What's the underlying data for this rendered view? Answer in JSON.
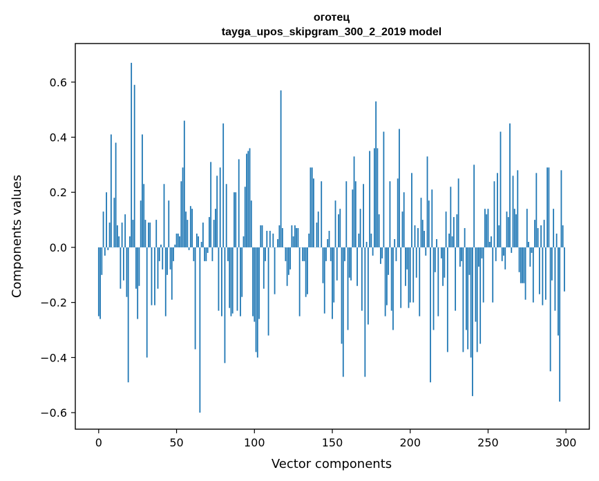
{
  "chart_data": {
    "type": "bar",
    "title": "оготец",
    "subtitle": "tayga_upos_skipgram_300_2_2019 model",
    "xlabel": "Vector components",
    "ylabel": "Components values",
    "xlim": [
      -15,
      315
    ],
    "ylim": [
      -0.66,
      0.74
    ],
    "xticks": [
      0,
      50,
      100,
      150,
      200,
      250,
      300
    ],
    "xtick_labels": [
      "0",
      "50",
      "100",
      "150",
      "200",
      "250",
      "300"
    ],
    "yticks": [
      -0.6,
      -0.4,
      -0.2,
      0.0,
      0.2,
      0.4,
      0.6
    ],
    "ytick_labels": [
      "−0.6",
      "−0.4",
      "−0.2",
      "0.0",
      "0.2",
      "0.4",
      "0.6"
    ],
    "grid": false,
    "bar_color": "#1f77b4",
    "x": [
      0,
      1,
      2,
      3,
      4,
      5,
      6,
      7,
      8,
      9,
      10,
      11,
      12,
      13,
      14,
      15,
      16,
      17,
      18,
      19,
      20,
      21,
      22,
      23,
      24,
      25,
      26,
      27,
      28,
      29,
      30,
      31,
      32,
      33,
      34,
      35,
      36,
      37,
      38,
      39,
      40,
      41,
      42,
      43,
      44,
      45,
      46,
      47,
      48,
      49,
      50,
      51,
      52,
      53,
      54,
      55,
      56,
      57,
      58,
      59,
      60,
      61,
      62,
      63,
      64,
      65,
      66,
      67,
      68,
      69,
      70,
      71,
      72,
      73,
      74,
      75,
      76,
      77,
      78,
      79,
      80,
      81,
      82,
      83,
      84,
      85,
      86,
      87,
      88,
      89,
      90,
      91,
      92,
      93,
      94,
      95,
      96,
      97,
      98,
      99,
      100,
      101,
      102,
      103,
      104,
      105,
      106,
      107,
      108,
      109,
      110,
      111,
      112,
      113,
      114,
      115,
      116,
      117,
      118,
      119,
      120,
      121,
      122,
      123,
      124,
      125,
      126,
      127,
      128,
      129,
      130,
      131,
      132,
      133,
      134,
      135,
      136,
      137,
      138,
      139,
      140,
      141,
      142,
      143,
      144,
      145,
      146,
      147,
      148,
      149,
      150,
      151,
      152,
      153,
      154,
      155,
      156,
      157,
      158,
      159,
      160,
      161,
      162,
      163,
      164,
      165,
      166,
      167,
      168,
      169,
      170,
      171,
      172,
      173,
      174,
      175,
      176,
      177,
      178,
      179,
      180,
      181,
      182,
      183,
      184,
      185,
      186,
      187,
      188,
      189,
      190,
      191,
      192,
      193,
      194,
      195,
      196,
      197,
      198,
      199,
      200,
      201,
      202,
      203,
      204,
      205,
      206,
      207,
      208,
      209,
      210,
      211,
      212,
      213,
      214,
      215,
      216,
      217,
      218,
      219,
      220,
      221,
      222,
      223,
      224,
      225,
      226,
      227,
      228,
      229,
      230,
      231,
      232,
      233,
      234,
      235,
      236,
      237,
      238,
      239,
      240,
      241,
      242,
      243,
      244,
      245,
      246,
      247,
      248,
      249,
      250,
      251,
      252,
      253,
      254,
      255,
      256,
      257,
      258,
      259,
      260,
      261,
      262,
      263,
      264,
      265,
      266,
      267,
      268,
      269,
      270,
      271,
      272,
      273,
      274,
      275,
      276,
      277,
      278,
      279,
      280,
      281,
      282,
      283,
      284,
      285,
      286,
      287,
      288,
      289,
      290,
      291,
      292,
      293,
      294,
      295,
      296,
      297,
      298,
      299
    ],
    "values": [
      -0.25,
      -0.26,
      -0.1,
      0.13,
      -0.03,
      0.2,
      -0.01,
      0.09,
      0.41,
      0.0,
      0.18,
      0.38,
      0.08,
      0.04,
      -0.15,
      0.09,
      -0.12,
      0.12,
      -0.18,
      -0.49,
      0.04,
      0.67,
      0.1,
      0.59,
      -0.15,
      -0.26,
      -0.14,
      0.17,
      0.41,
      0.23,
      0.1,
      -0.4,
      0.09,
      0.09,
      -0.21,
      0.0,
      -0.21,
      0.1,
      -0.15,
      -0.05,
      0.01,
      -0.08,
      0.23,
      -0.25,
      -0.1,
      0.17,
      -0.08,
      -0.19,
      -0.05,
      0.01,
      0.05,
      0.05,
      0.04,
      0.24,
      0.29,
      0.46,
      0.13,
      0.1,
      -0.01,
      0.15,
      0.14,
      -0.05,
      -0.37,
      0.05,
      0.04,
      -0.6,
      0.02,
      0.09,
      -0.05,
      -0.05,
      -0.02,
      0.11,
      0.31,
      -0.05,
      0.1,
      0.14,
      0.26,
      -0.23,
      0.29,
      -0.25,
      0.45,
      -0.42,
      0.23,
      -0.05,
      -0.22,
      -0.25,
      -0.24,
      0.2,
      0.2,
      -0.23,
      0.32,
      -0.25,
      -0.18,
      0.04,
      0.22,
      0.34,
      0.35,
      0.36,
      0.17,
      -0.25,
      -0.27,
      -0.38,
      -0.4,
      -0.26,
      0.08,
      0.08,
      -0.15,
      -0.05,
      0.06,
      -0.32,
      0.06,
      0.0,
      0.05,
      -0.17,
      0.0,
      0.03,
      0.08,
      0.57,
      0.07,
      0.0,
      -0.05,
      -0.14,
      -0.1,
      -0.08,
      0.08,
      0.04,
      0.08,
      0.07,
      0.07,
      -0.25,
      0.0,
      -0.05,
      -0.05,
      -0.18,
      -0.17,
      0.05,
      0.29,
      0.29,
      0.25,
      0.0,
      0.09,
      0.13,
      0.0,
      0.24,
      -0.13,
      -0.24,
      -0.05,
      0.03,
      0.06,
      -0.05,
      -0.26,
      -0.2,
      0.17,
      -0.12,
      0.12,
      0.14,
      -0.35,
      -0.47,
      -0.05,
      0.24,
      -0.3,
      -0.11,
      -0.12,
      0.21,
      0.33,
      0.24,
      -0.14,
      0.05,
      0.14,
      -0.23,
      0.23,
      -0.47,
      0.02,
      -0.28,
      0.35,
      0.05,
      -0.03,
      0.36,
      0.53,
      0.36,
      0.12,
      -0.06,
      -0.04,
      0.42,
      -0.25,
      -0.21,
      -0.1,
      0.24,
      -0.23,
      -0.3,
      0.03,
      -0.05,
      0.25,
      0.43,
      -0.22,
      0.13,
      0.2,
      -0.14,
      -0.08,
      -0.22,
      -0.2,
      0.27,
      -0.2,
      0.08,
      -0.11,
      0.07,
      -0.25,
      0.18,
      0.1,
      0.06,
      -0.03,
      0.33,
      0.17,
      -0.49,
      0.21,
      -0.3,
      -0.09,
      0.03,
      -0.25,
      0.0,
      -0.04,
      -0.14,
      -0.11,
      0.13,
      -0.38,
      0.05,
      0.22,
      0.04,
      0.11,
      -0.23,
      0.12,
      0.25,
      -0.07,
      -0.05,
      -0.38,
      0.07,
      -0.3,
      -0.37,
      -0.1,
      -0.4,
      -0.54,
      0.3,
      -0.27,
      -0.38,
      -0.07,
      -0.35,
      -0.04,
      -0.2,
      0.14,
      0.12,
      0.14,
      0.02,
      0.04,
      -0.2,
      0.24,
      -0.05,
      0.27,
      0.08,
      0.42,
      -0.05,
      -0.03,
      -0.08,
      0.13,
      0.11,
      0.45,
      -0.02,
      0.26,
      0.14,
      0.12,
      0.28,
      -0.09,
      -0.13,
      -0.13,
      -0.13,
      -0.19,
      0.14,
      0.02,
      -0.07,
      -0.02,
      -0.2,
      0.1,
      0.27,
      0.07,
      -0.17,
      0.08,
      -0.21,
      0.1,
      -0.19,
      0.29,
      0.29,
      -0.45,
      -0.12,
      0.14,
      -0.23,
      0.05,
      -0.32,
      -0.56,
      0.28,
      0.08,
      -0.16
    ]
  }
}
